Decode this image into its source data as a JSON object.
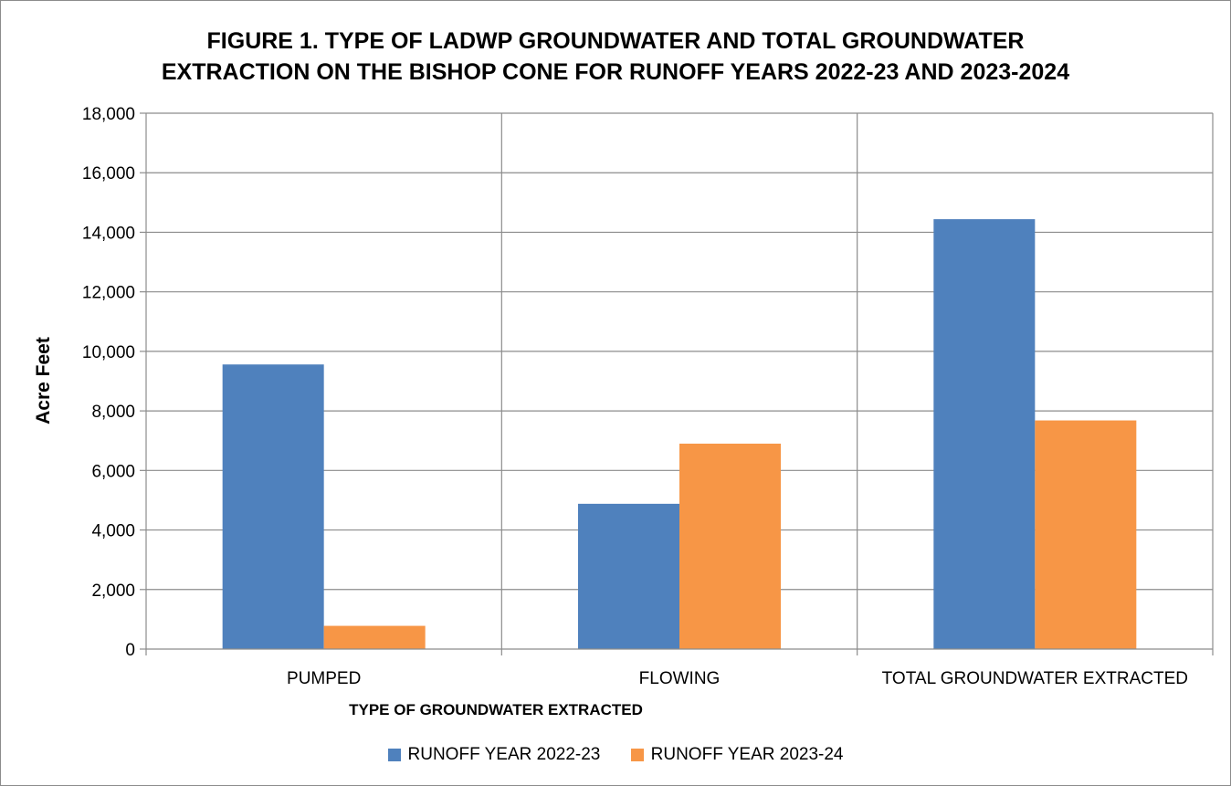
{
  "chart_data": {
    "type": "bar",
    "title_lines": [
      "FIGURE 1. TYPE OF LADWP GROUNDWATER AND TOTAL GROUNDWATER",
      "EXTRACTION ON THE BISHOP CONE FOR RUNOFF YEARS 2022-23 AND 2023-2024"
    ],
    "xlabel": "TYPE OF GROUNDWATER EXTRACTED",
    "ylabel": "Acre Feet",
    "categories": [
      "PUMPED",
      "FLOWING",
      "TOTAL GROUNDWATER EXTRACTED"
    ],
    "series": [
      {
        "name": "RUNOFF YEAR 2022-23",
        "color": "#4f81bd",
        "values": [
          9560,
          4880,
          14440
        ]
      },
      {
        "name": "RUNOFF YEAR 2023-24",
        "color": "#f79646",
        "values": [
          780,
          6900,
          7680
        ]
      }
    ],
    "ylim": [
      0,
      18000
    ],
    "yticks": [
      "0",
      "2,000",
      "4,000",
      "6,000",
      "8,000",
      "10,000",
      "12,000",
      "14,000",
      "16,000",
      "18,000"
    ],
    "ytick_values": [
      0,
      2000,
      4000,
      6000,
      8000,
      10000,
      12000,
      14000,
      16000,
      18000
    ],
    "grid": "horizontal and vertical",
    "legend_position": "bottom"
  }
}
